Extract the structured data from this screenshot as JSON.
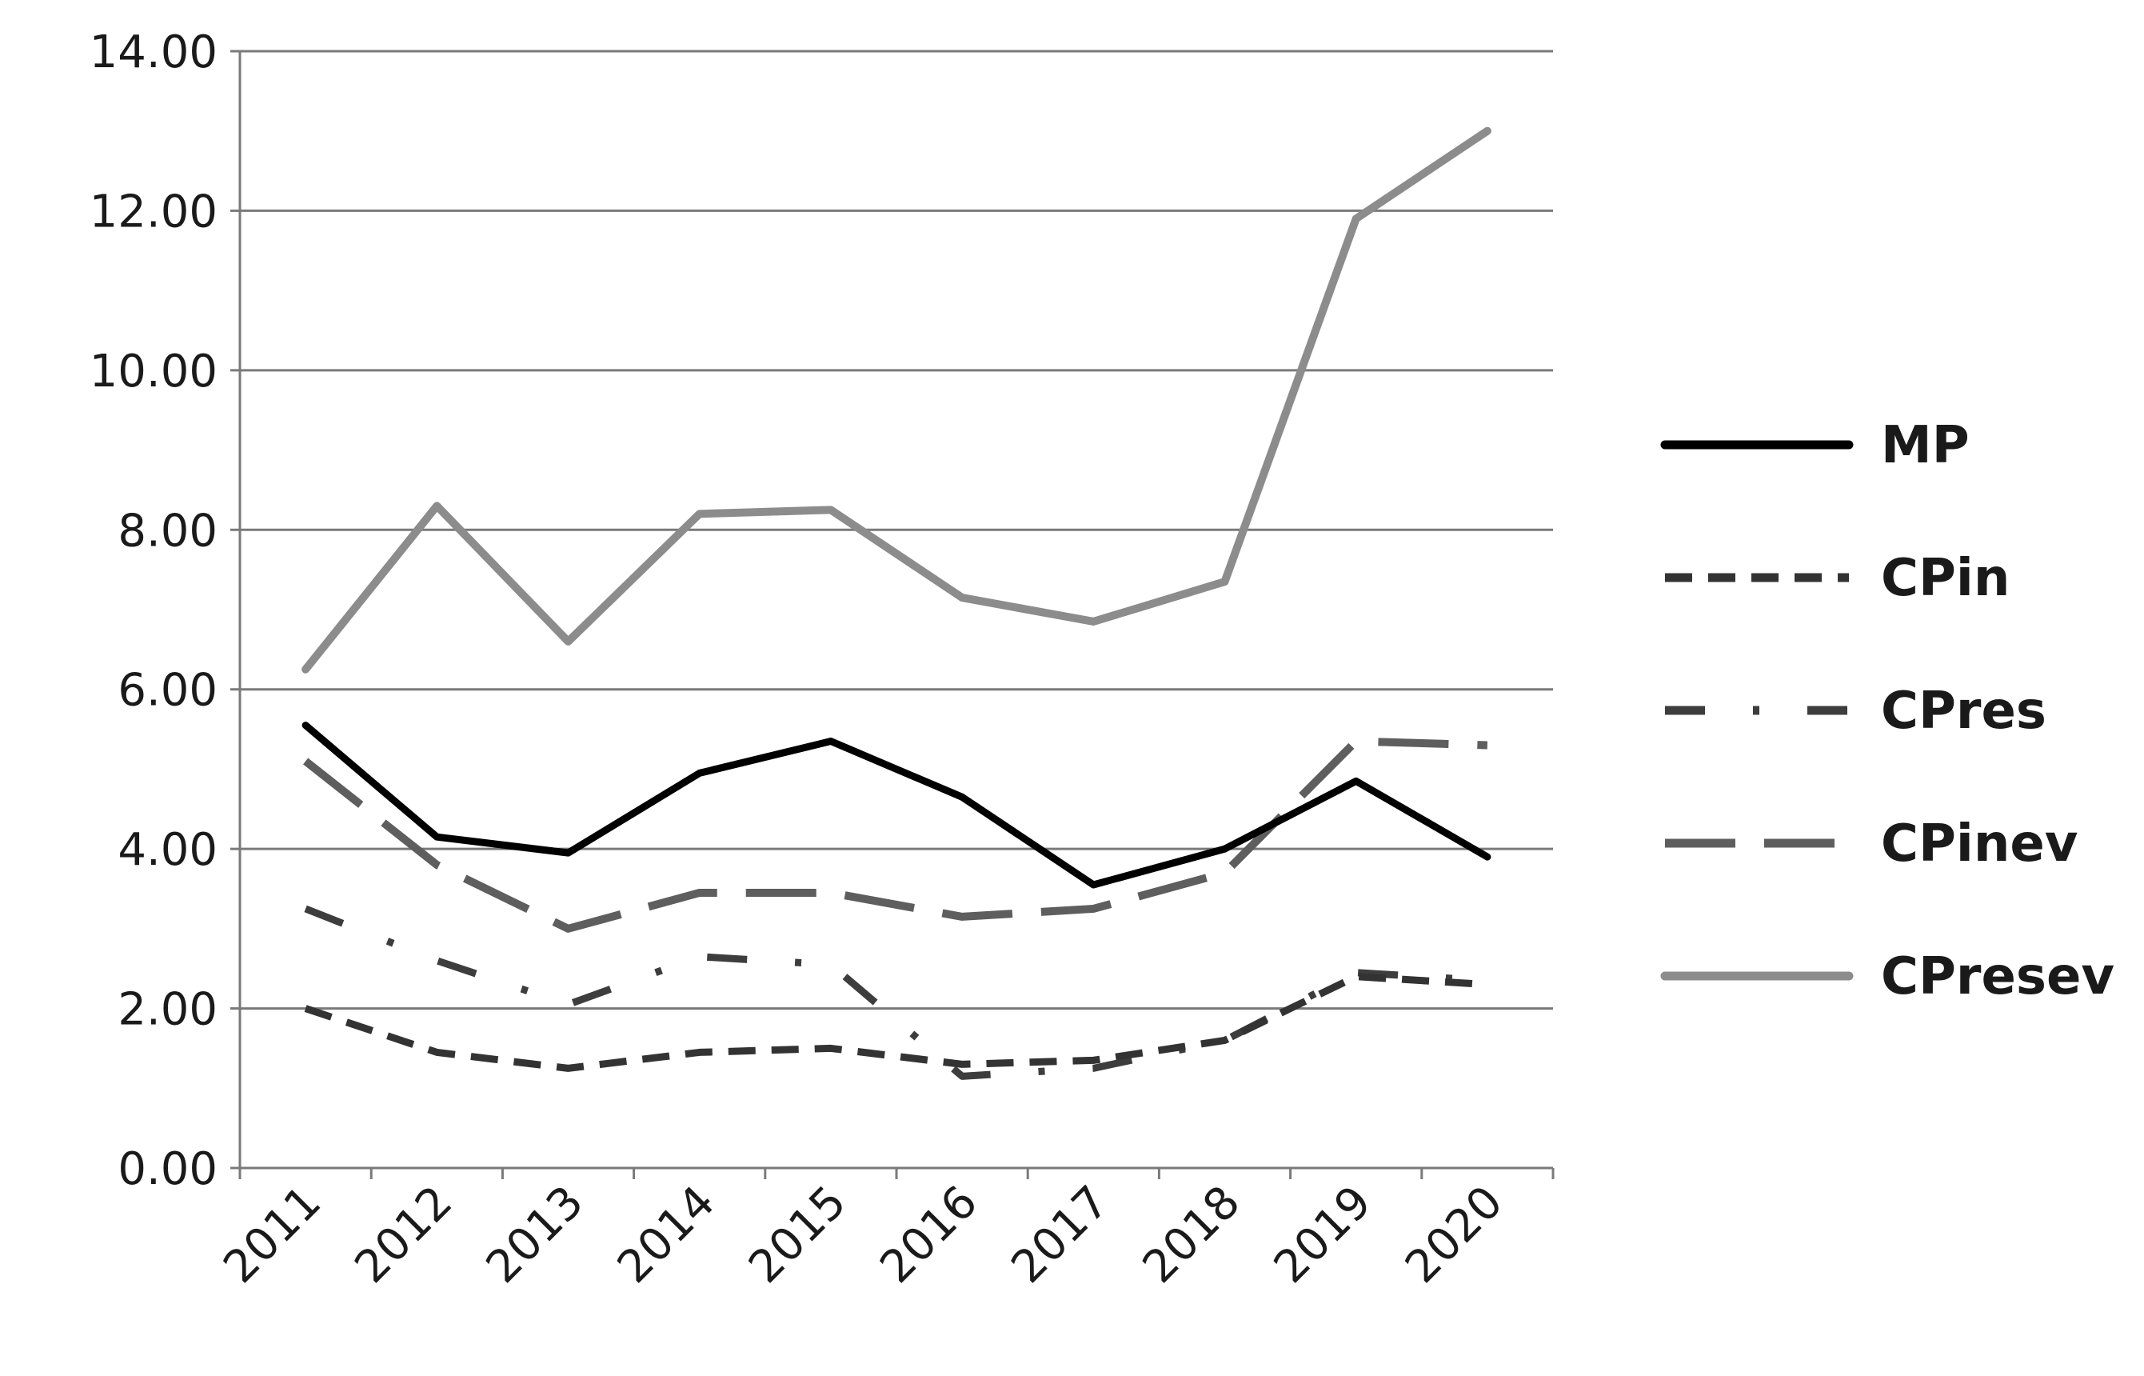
{
  "chart_data": {
    "type": "line",
    "title": "",
    "xlabel": "",
    "ylabel": "",
    "ylim": [
      0,
      14
    ],
    "y_ticks": [
      "0.00",
      "2.00",
      "4.00",
      "6.00",
      "8.00",
      "10.00",
      "12.00",
      "14.00"
    ],
    "categories": [
      "2011",
      "2012",
      "2013",
      "2014",
      "2015",
      "2016",
      "2017",
      "2018",
      "2019",
      "2020"
    ],
    "grid": "horizontal",
    "legend_position": "right",
    "series": [
      {
        "name": "MP",
        "color": "#000000",
        "style": "solid",
        "values": [
          5.55,
          4.15,
          3.95,
          4.95,
          5.35,
          4.65,
          3.55,
          4.0,
          4.85,
          3.9
        ]
      },
      {
        "name": "CPin",
        "color": "#333333",
        "style": "short-dash",
        "values": [
          2.0,
          1.45,
          1.25,
          1.45,
          1.5,
          1.3,
          1.35,
          1.6,
          2.4,
          2.3
        ]
      },
      {
        "name": "CPres",
        "color": "#3d3d3d",
        "style": "dash-dot",
        "values": [
          3.25,
          2.6,
          2.05,
          2.65,
          2.55,
          1.15,
          1.25,
          1.6,
          2.45,
          2.35
        ]
      },
      {
        "name": "CPinev",
        "color": "#5e5e5e",
        "style": "long-dash",
        "values": [
          5.1,
          3.8,
          3.0,
          3.45,
          3.45,
          3.15,
          3.25,
          3.7,
          5.35,
          5.3
        ]
      },
      {
        "name": "CPresev",
        "color": "#8c8c8c",
        "style": "solid",
        "values": [
          6.25,
          8.3,
          6.6,
          8.2,
          8.25,
          7.15,
          6.85,
          7.35,
          11.9,
          13.0
        ]
      }
    ]
  }
}
